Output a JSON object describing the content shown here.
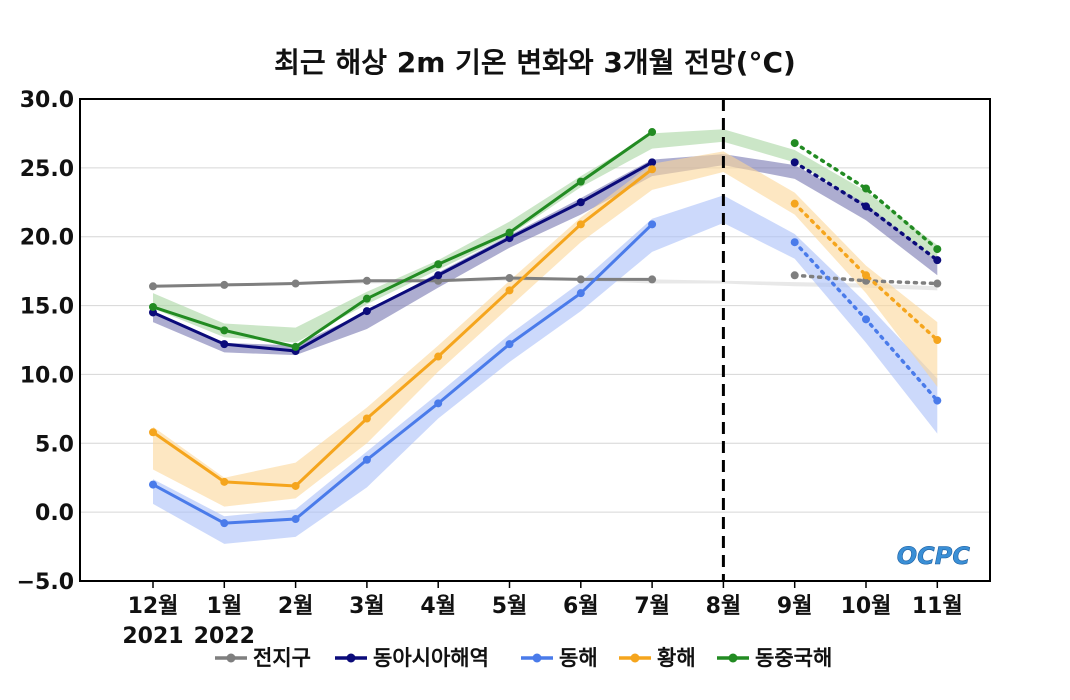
{
  "chart_data": {
    "type": "line",
    "title": "최근 해상 2m 기온 변화와 3개월 전망(°C)",
    "ylim": [
      -5,
      30
    ],
    "yticks": [
      "30.0",
      "25.0",
      "20.0",
      "15.0",
      "10.0",
      "5.0",
      "0.0",
      "−5.0"
    ],
    "ytick_values": [
      30,
      25,
      20,
      15,
      10,
      5,
      0,
      -5
    ],
    "categories": [
      "12월",
      "1월",
      "2월",
      "3월",
      "4월",
      "5월",
      "6월",
      "7월",
      "8월",
      "9월",
      "10월",
      "11월"
    ],
    "year_labels": [
      {
        "text": "2021",
        "category_index": 0
      },
      {
        "text": "2022",
        "category_index": 1
      }
    ],
    "divider_category": "8월",
    "grid": true,
    "legend_position": "bottom",
    "logo": "OCPC",
    "series": [
      {
        "name": "전지구",
        "color": "#7f7f7f",
        "band_color": "#d9d9d9",
        "observed_start": 0,
        "observed": [
          16.4,
          16.5,
          16.6,
          16.8,
          16.8,
          17.0,
          16.9,
          16.9
        ],
        "forecast_start": 9,
        "forecast": [
          17.2,
          16.8,
          16.6
        ],
        "band": [
          [
            16.3,
            16.5
          ],
          [
            16.4,
            16.6
          ],
          [
            16.5,
            16.7
          ],
          [
            16.6,
            16.9
          ],
          [
            16.7,
            16.9
          ],
          [
            16.8,
            17.0
          ],
          [
            16.8,
            17.0
          ],
          [
            16.6,
            16.9
          ],
          [
            16.6,
            16.8
          ],
          [
            16.4,
            16.7
          ],
          [
            16.3,
            16.6
          ],
          [
            16.1,
            16.4
          ]
        ]
      },
      {
        "name": "동아시아해역",
        "color": "#0b0b7a",
        "band_color": "#7777b0",
        "observed_start": 0,
        "observed": [
          14.5,
          12.2,
          11.7,
          14.6,
          17.2,
          19.9,
          22.5,
          25.4
        ],
        "forecast_start": 9,
        "forecast": [
          25.4,
          22.2,
          18.3
        ],
        "band": [
          [
            13.8,
            14.6
          ],
          [
            11.6,
            12.3
          ],
          [
            11.4,
            12.1
          ],
          [
            13.3,
            14.6
          ],
          [
            16.3,
            17.4
          ],
          [
            19.2,
            20.1
          ],
          [
            21.6,
            22.8
          ],
          [
            24.4,
            25.6
          ],
          [
            25.2,
            26.0
          ],
          [
            24.2,
            25.2
          ],
          [
            21.2,
            22.4
          ],
          [
            17.2,
            18.2
          ]
        ]
      },
      {
        "name": "동해",
        "color": "#4a7bea",
        "band_color": "#aabff8",
        "observed_start": 0,
        "observed": [
          2.0,
          -0.8,
          -0.5,
          3.8,
          7.9,
          12.2,
          15.9,
          20.9
        ],
        "forecast_start": 9,
        "forecast": [
          19.6,
          14.0,
          8.1
        ],
        "band": [
          [
            0.6,
            2.4
          ],
          [
            -2.3,
            -0.3
          ],
          [
            -1.8,
            0.2
          ],
          [
            1.8,
            4.4
          ],
          [
            6.8,
            8.6
          ],
          [
            10.9,
            12.9
          ],
          [
            14.6,
            16.7
          ],
          [
            18.9,
            21.3
          ],
          [
            21.0,
            23.0
          ],
          [
            18.4,
            20.2
          ],
          [
            12.3,
            15.2
          ],
          [
            5.7,
            9.7
          ]
        ]
      },
      {
        "name": "황해",
        "color": "#f5a51d",
        "band_color": "#fbd79a",
        "observed_start": 0,
        "observed": [
          5.8,
          2.2,
          1.9,
          6.8,
          11.3,
          16.1,
          20.9,
          24.9
        ],
        "forecast_start": 9,
        "forecast": [
          22.4,
          17.2,
          12.5
        ],
        "band": [
          [
            3.1,
            6.2
          ],
          [
            0.4,
            2.5
          ],
          [
            1.0,
            3.6
          ],
          [
            5.0,
            7.6
          ],
          [
            10.2,
            12.1
          ],
          [
            14.9,
            16.8
          ],
          [
            19.6,
            21.4
          ],
          [
            23.4,
            25.3
          ],
          [
            24.7,
            26.2
          ],
          [
            21.6,
            23.2
          ],
          [
            15.9,
            17.9
          ],
          [
            9.1,
            13.8
          ]
        ]
      },
      {
        "name": "동중국해",
        "color": "#228b22",
        "band_color": "#a8d5a2",
        "observed_start": 0,
        "observed": [
          14.9,
          13.2,
          12.0,
          15.5,
          18.0,
          20.3,
          24.0,
          27.6
        ],
        "forecast_start": 9,
        "forecast": [
          26.8,
          23.5,
          19.1
        ],
        "band": [
          [
            14.8,
            15.9
          ],
          [
            12.7,
            13.7
          ],
          [
            12.3,
            13.4
          ],
          [
            15.1,
            16.0
          ],
          [
            17.6,
            18.3
          ],
          [
            20.1,
            21.1
          ],
          [
            23.6,
            24.4
          ],
          [
            26.4,
            27.5
          ],
          [
            26.9,
            27.8
          ],
          [
            25.4,
            26.3
          ],
          [
            22.3,
            23.3
          ],
          [
            18.2,
            19.4
          ]
        ]
      }
    ]
  }
}
